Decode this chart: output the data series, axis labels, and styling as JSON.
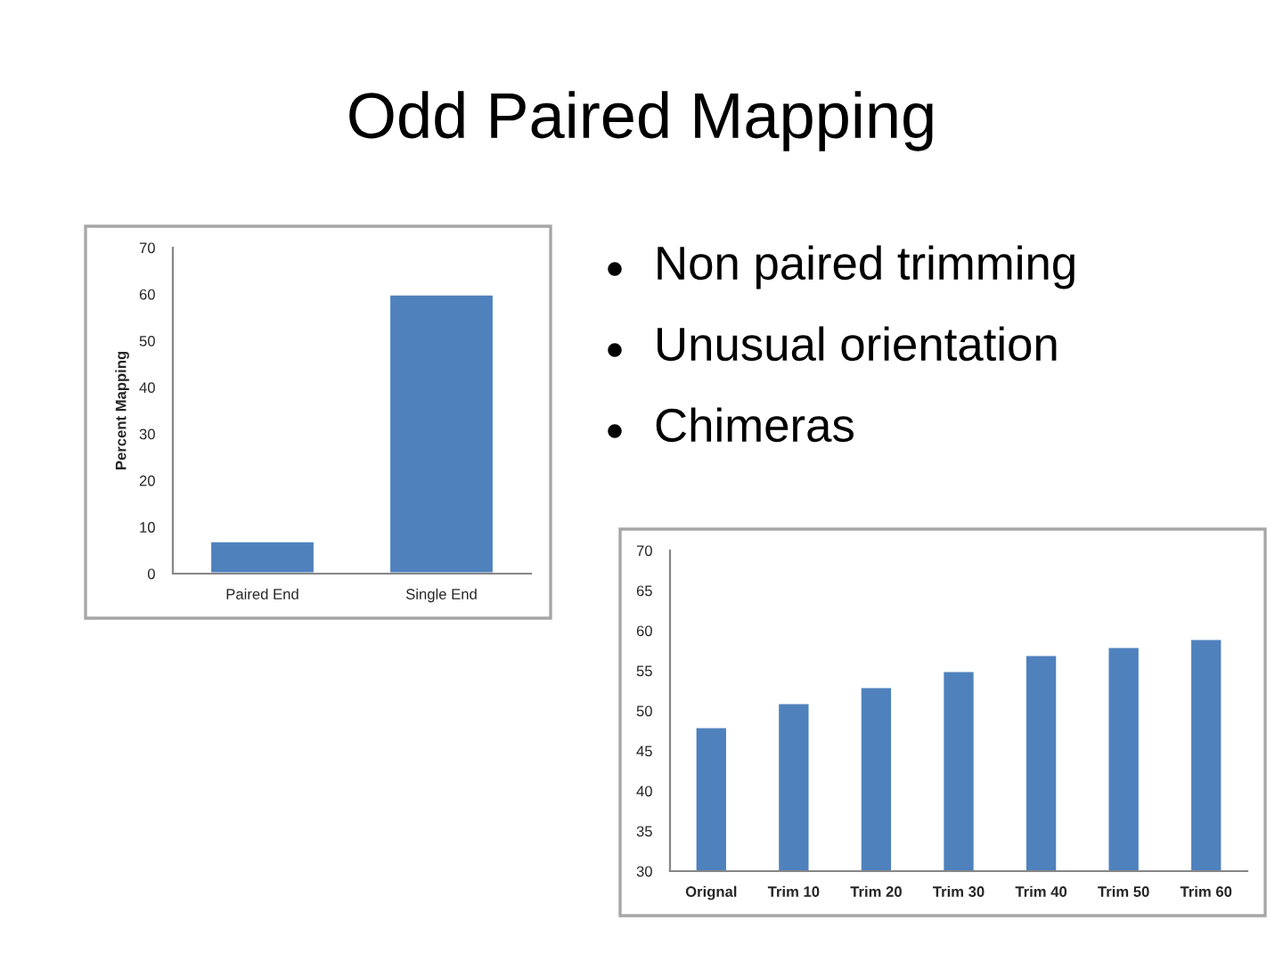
{
  "chart_data": [
    {
      "type": "other",
      "title": "Odd Paired Mapping",
      "annotations": [
        "Non paired trimming",
        "Unusual orientation",
        "Chimeras"
      ]
    },
    {
      "type": "bar",
      "categories": [
        "Paired End",
        "Single End"
      ],
      "values": [
        7,
        60
      ],
      "color": "#4f81bd",
      "ylabel": "Percent Mapping",
      "ylim": [
        0,
        70
      ],
      "yticks": [
        0,
        10,
        20,
        30,
        40,
        50,
        60,
        70
      ]
    },
    {
      "type": "bar",
      "categories": [
        "Orignal",
        "Trim 10",
        "Trim 20",
        "Trim 30",
        "Trim 40",
        "Trim 50",
        "Trim 60"
      ],
      "values": [
        48,
        51,
        53,
        55,
        57,
        58,
        59
      ],
      "color": "#4f81bd",
      "ylim": [
        30,
        70
      ],
      "yticks": [
        30,
        35,
        40,
        45,
        50,
        55,
        60,
        65,
        70
      ]
    }
  ]
}
